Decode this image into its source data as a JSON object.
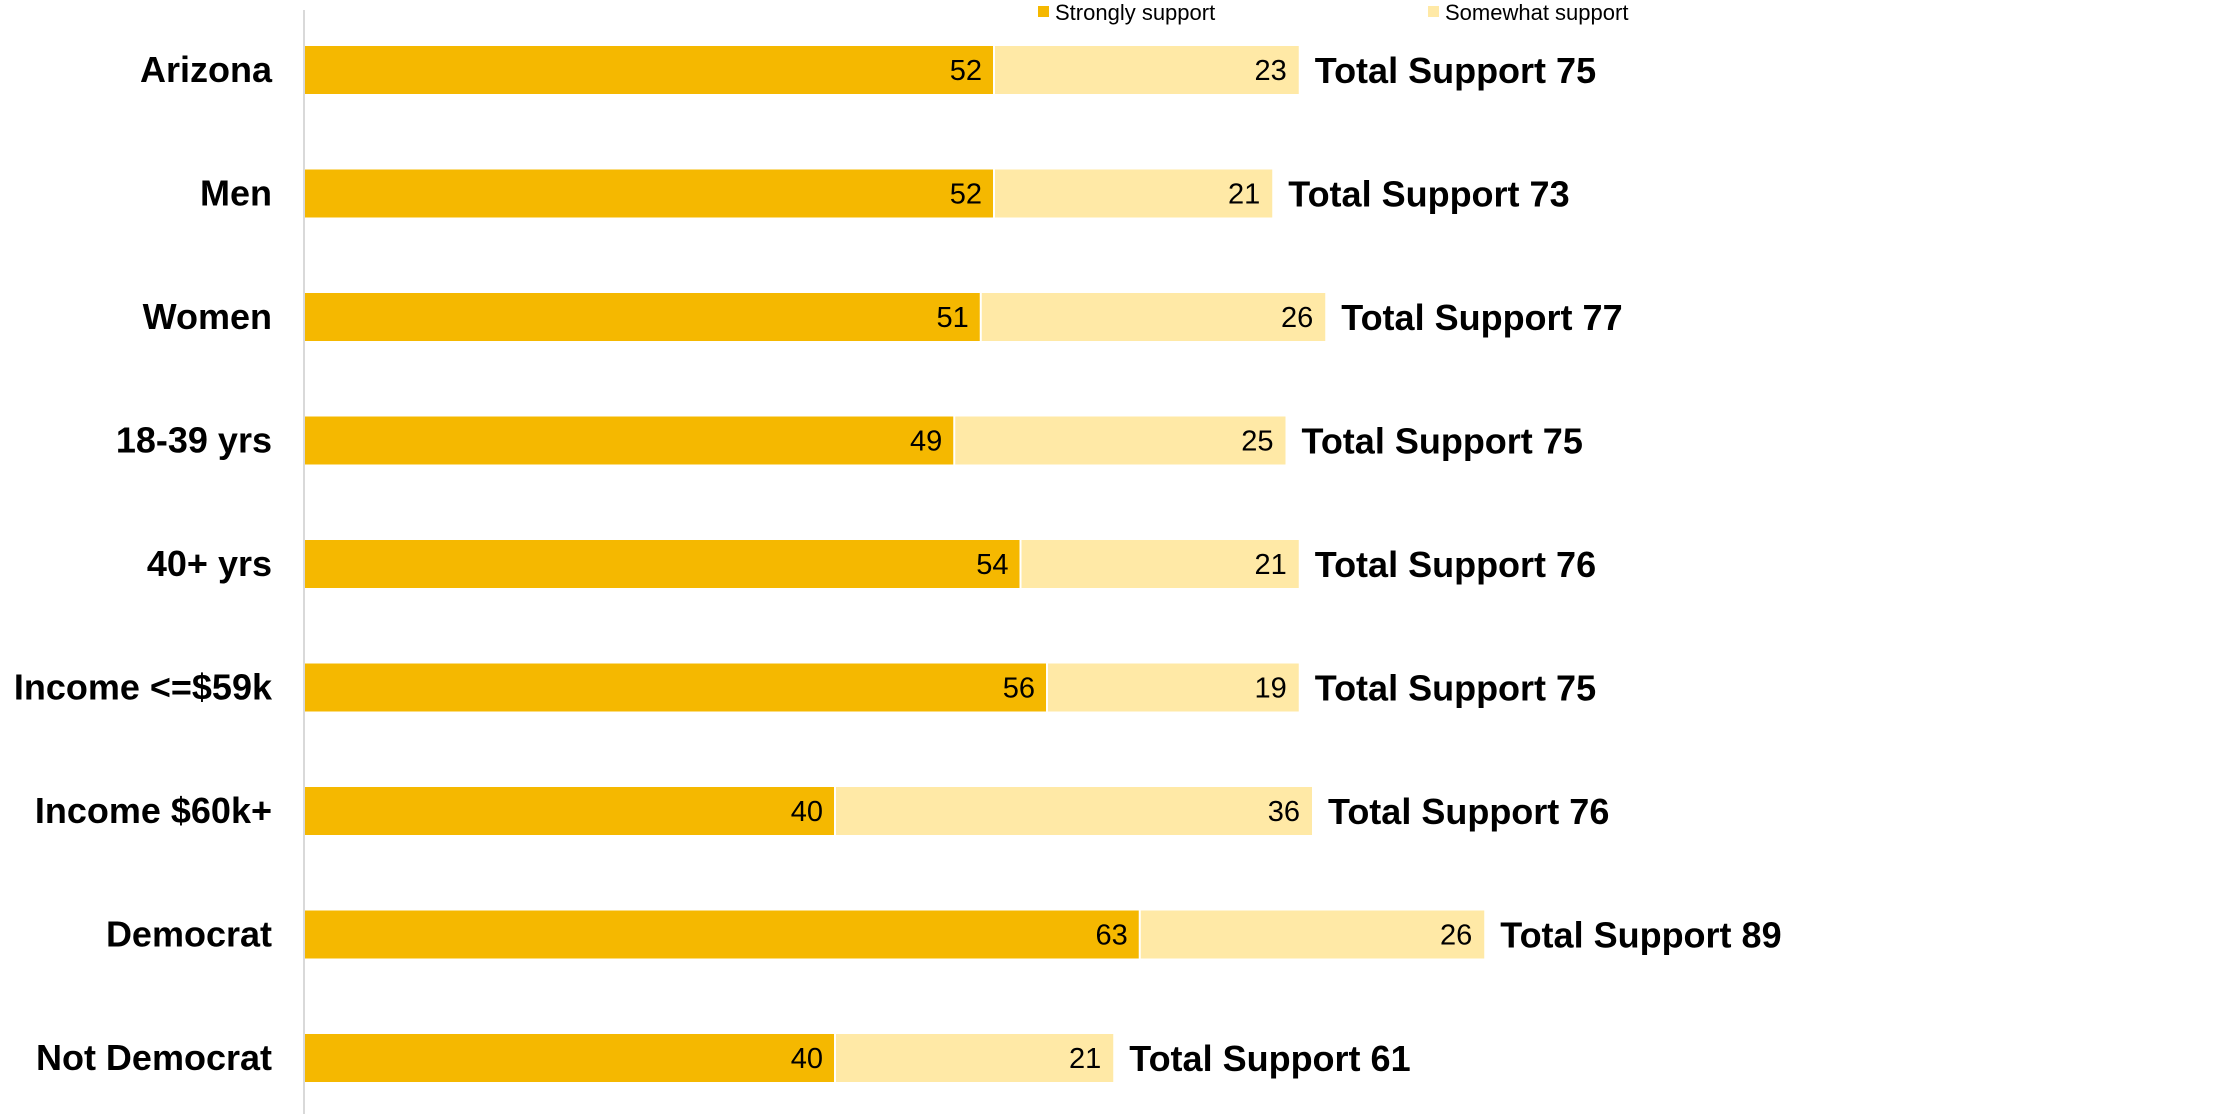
{
  "chart_data": {
    "type": "bar",
    "orientation": "horizontal",
    "stacked": true,
    "categories": [
      "Arizona",
      "Men",
      "Women",
      "18-39 yrs",
      "40+ yrs",
      "Income <=$59k",
      "Income $60k+",
      "Democrat",
      "Not Democrat"
    ],
    "series": [
      {
        "name": "Strongly support",
        "color": "#F5B800",
        "values": [
          52,
          52,
          51,
          49,
          54,
          56,
          40,
          63,
          40
        ]
      },
      {
        "name": "Somewhat support",
        "color": "#FFE9A6",
        "values": [
          23,
          21,
          26,
          25,
          21,
          19,
          36,
          26,
          21
        ]
      }
    ],
    "totals": {
      "values": [
        75,
        73,
        77,
        75,
        76,
        75,
        76,
        89,
        61
      ],
      "labels": [
        "Total Support 75",
        "Total Support 73",
        "Total Support 77",
        "Total Support 75",
        "Total Support 76",
        "Total Support 75",
        "Total Support 76",
        "Total Support 89",
        "Total Support 61"
      ]
    },
    "legend": {
      "position": "top"
    },
    "xlim": [
      0,
      100
    ],
    "grid": false
  }
}
